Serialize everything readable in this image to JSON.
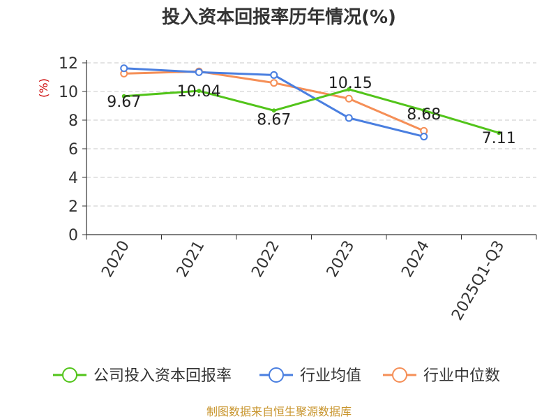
{
  "chart_data": {
    "type": "line",
    "title": "投入资本回报率历年情况(%)",
    "ylabel": "(%)",
    "categories": [
      "2020",
      "2021",
      "2022",
      "2023",
      "2024",
      "2025Q1-Q3"
    ],
    "ylim": [
      0,
      12
    ],
    "yticks": [
      0,
      2,
      4,
      6,
      8,
      10,
      12
    ],
    "grid": "horizontal dashed",
    "legend_position": "bottom",
    "series": [
      {
        "name": "公司投入资本回报率",
        "color": "#52c41a",
        "values": [
          9.67,
          10.04,
          8.67,
          10.15,
          8.68,
          7.11
        ],
        "labels": [
          "9.67",
          "10.04",
          "8.67",
          "10.15",
          "8.68",
          "7.11"
        ]
      },
      {
        "name": "行业均值",
        "color": "#4a7fe0",
        "values": [
          11.62,
          11.35,
          11.15,
          8.15,
          6.85,
          null
        ]
      },
      {
        "name": "行业中位数",
        "color": "#f58f57",
        "values": [
          11.25,
          11.4,
          10.6,
          9.5,
          7.25,
          null
        ]
      }
    ]
  },
  "footer": {
    "source": "制图数据来自恒生聚源数据库"
  }
}
